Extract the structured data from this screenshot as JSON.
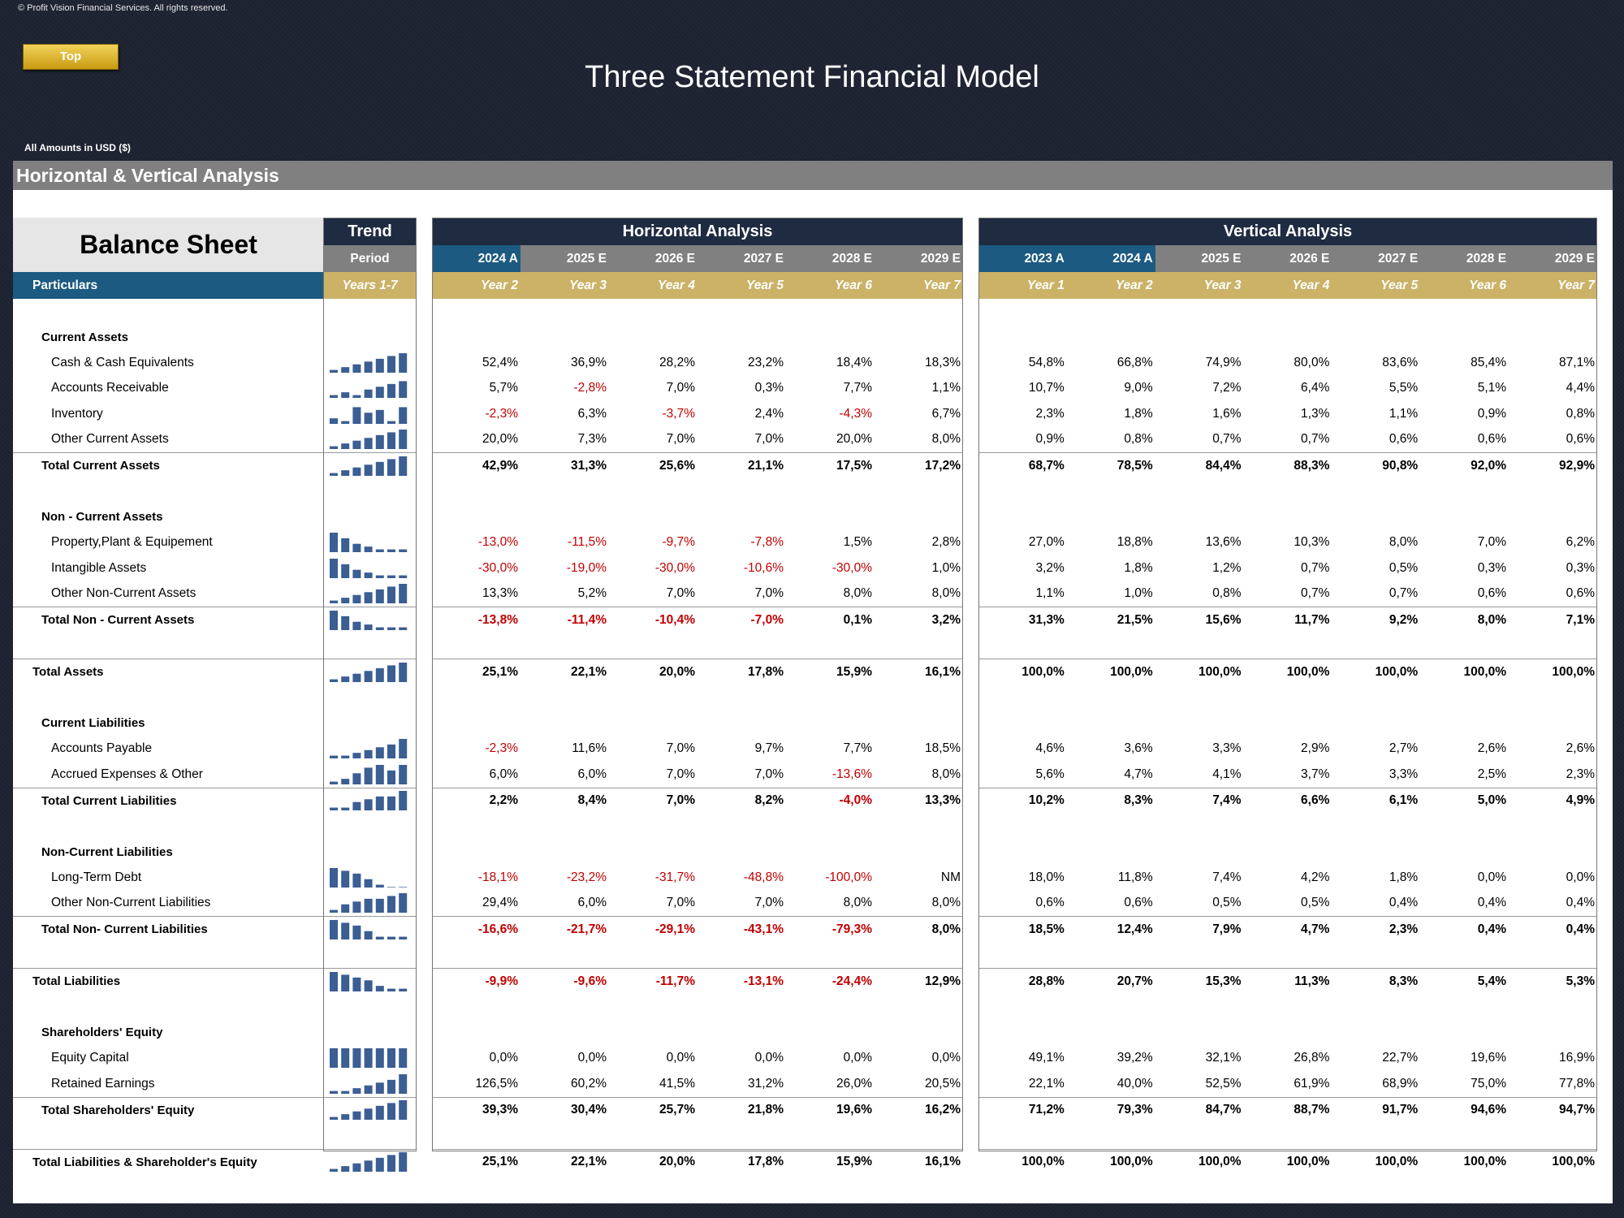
{
  "copyright": "© Profit Vision Financial Services. All rights reserved.",
  "top_button": "Top",
  "title": "Three Statement Financial Model",
  "amounts": "All Amounts in  USD ($)",
  "section": "Horizontal & Vertical Analysis",
  "left": {
    "title": "Balance Sheet",
    "trend": "Trend",
    "period": "Period",
    "particulars": "Particulars",
    "years": "Years 1-7"
  },
  "horiz": {
    "title": "Horizontal Analysis",
    "periods": [
      "2024 A",
      "2025 E",
      "2026 E",
      "2027 E",
      "2028 E",
      "2029 E"
    ],
    "years": [
      "Year 2",
      "Year 3",
      "Year 4",
      "Year 5",
      "Year 6",
      "Year 7"
    ]
  },
  "vert": {
    "title": "Vertical Analysis",
    "periods": [
      "2023 A",
      "2024 A",
      "2025 E",
      "2026 E",
      "2027 E",
      "2028 E",
      "2029 E"
    ],
    "years": [
      "Year 1",
      "Year 2",
      "Year 3",
      "Year 4",
      "Year 5",
      "Year 6",
      "Year 7"
    ]
  },
  "rows": [
    {
      "type": "blank"
    },
    {
      "type": "header",
      "label": "Current Assets"
    },
    {
      "type": "item",
      "label": "Cash & Cash Equivalents",
      "trend": [
        1,
        2,
        3,
        4,
        5,
        6,
        7
      ],
      "h": [
        "52,4%",
        "36,9%",
        "28,2%",
        "23,2%",
        "18,4%",
        "18,3%"
      ],
      "v": [
        "54,8%",
        "66,8%",
        "74,9%",
        "80,0%",
        "83,6%",
        "85,4%",
        "87,1%"
      ]
    },
    {
      "type": "item",
      "label": "Accounts Receivable",
      "trend": [
        1,
        2,
        1,
        3,
        4,
        5,
        6
      ],
      "h": [
        "5,7%",
        "-2,8%",
        "7,0%",
        "0,3%",
        "7,7%",
        "1,1%"
      ],
      "v": [
        "10,7%",
        "9,0%",
        "7,2%",
        "6,4%",
        "5,5%",
        "5,1%",
        "4,4%"
      ]
    },
    {
      "type": "item",
      "label": "Inventory",
      "trend": [
        2,
        1,
        6,
        4,
        5,
        1,
        6
      ],
      "h": [
        "-2,3%",
        "6,3%",
        "-3,7%",
        "2,4%",
        "-4,3%",
        "6,7%"
      ],
      "v": [
        "2,3%",
        "1,8%",
        "1,6%",
        "1,3%",
        "1,1%",
        "0,9%",
        "0,8%"
      ]
    },
    {
      "type": "item",
      "label": "Other Current Assets",
      "trend": [
        1,
        2,
        3,
        4,
        5,
        6,
        7
      ],
      "h": [
        "20,0%",
        "7,3%",
        "7,0%",
        "7,0%",
        "20,0%",
        "8,0%"
      ],
      "v": [
        "0,9%",
        "0,8%",
        "0,7%",
        "0,7%",
        "0,6%",
        "0,6%",
        "0,6%"
      ]
    },
    {
      "type": "total",
      "label": "Total Current Assets",
      "trend": [
        1,
        2,
        3,
        4,
        5,
        6,
        7
      ],
      "h": [
        "42,9%",
        "31,3%",
        "25,6%",
        "21,1%",
        "17,5%",
        "17,2%"
      ],
      "v": [
        "68,7%",
        "78,5%",
        "84,4%",
        "88,3%",
        "90,8%",
        "92,0%",
        "92,9%"
      ]
    },
    {
      "type": "blank"
    },
    {
      "type": "header",
      "label": "Non - Current Assets"
    },
    {
      "type": "item",
      "label": "Property,Plant & Equipement",
      "trend": [
        7,
        5,
        3,
        2,
        1,
        1,
        1
      ],
      "h": [
        "-13,0%",
        "-11,5%",
        "-9,7%",
        "-7,8%",
        "1,5%",
        "2,8%"
      ],
      "v": [
        "27,0%",
        "18,8%",
        "13,6%",
        "10,3%",
        "8,0%",
        "7,0%",
        "6,2%"
      ]
    },
    {
      "type": "item",
      "label": "Intangible Assets",
      "trend": [
        7,
        5,
        3,
        2,
        1,
        1,
        1
      ],
      "h": [
        "-30,0%",
        "-19,0%",
        "-30,0%",
        "-10,6%",
        "-30,0%",
        "1,0%"
      ],
      "v": [
        "3,2%",
        "1,8%",
        "1,2%",
        "0,7%",
        "0,5%",
        "0,3%",
        "0,3%"
      ]
    },
    {
      "type": "item",
      "label": "Other Non-Current Assets",
      "trend": [
        1,
        2,
        3,
        4,
        5,
        6,
        7
      ],
      "h": [
        "13,3%",
        "5,2%",
        "7,0%",
        "7,0%",
        "8,0%",
        "8,0%"
      ],
      "v": [
        "1,1%",
        "1,0%",
        "0,8%",
        "0,7%",
        "0,7%",
        "0,6%",
        "0,6%"
      ]
    },
    {
      "type": "total",
      "label": "Total Non - Current Assets",
      "trend": [
        7,
        5,
        3,
        2,
        1,
        1,
        1
      ],
      "h": [
        "-13,8%",
        "-11,4%",
        "-10,4%",
        "-7,0%",
        "0,1%",
        "3,2%"
      ],
      "v": [
        "31,3%",
        "21,5%",
        "15,6%",
        "11,7%",
        "9,2%",
        "8,0%",
        "7,1%"
      ]
    },
    {
      "type": "blank"
    },
    {
      "type": "grand",
      "label": "Total Assets",
      "trend": [
        1,
        2,
        3,
        4,
        5,
        6,
        7
      ],
      "h": [
        "25,1%",
        "22,1%",
        "20,0%",
        "17,8%",
        "15,9%",
        "16,1%"
      ],
      "v": [
        "100,0%",
        "100,0%",
        "100,0%",
        "100,0%",
        "100,0%",
        "100,0%",
        "100,0%"
      ]
    },
    {
      "type": "blank"
    },
    {
      "type": "header",
      "label": "Current Liabilities"
    },
    {
      "type": "item",
      "label": "Accounts Payable",
      "trend": [
        1,
        1,
        2,
        3,
        4,
        5,
        7
      ],
      "h": [
        "-2,3%",
        "11,6%",
        "7,0%",
        "9,7%",
        "7,7%",
        "18,5%"
      ],
      "v": [
        "4,6%",
        "3,6%",
        "3,3%",
        "2,9%",
        "2,7%",
        "2,6%",
        "2,6%"
      ]
    },
    {
      "type": "item",
      "label": "Accrued Expenses & Other",
      "trend": [
        1,
        2,
        4,
        6,
        7,
        5,
        7
      ],
      "h": [
        "6,0%",
        "6,0%",
        "7,0%",
        "7,0%",
        "-13,6%",
        "8,0%"
      ],
      "v": [
        "5,6%",
        "4,7%",
        "4,1%",
        "3,7%",
        "3,3%",
        "2,5%",
        "2,3%"
      ]
    },
    {
      "type": "total",
      "label": "Total Current Liabilities",
      "trend": [
        1,
        1,
        3,
        4,
        5,
        5,
        7
      ],
      "h": [
        "2,2%",
        "8,4%",
        "7,0%",
        "8,2%",
        "-4,0%",
        "13,3%"
      ],
      "v": [
        "10,2%",
        "8,3%",
        "7,4%",
        "6,6%",
        "6,1%",
        "5,0%",
        "4,9%"
      ]
    },
    {
      "type": "blank"
    },
    {
      "type": "header",
      "label": "Non-Current Liabilities"
    },
    {
      "type": "item",
      "label": "Long-Term Debt",
      "trend": [
        7,
        6,
        5,
        3,
        1,
        0,
        0
      ],
      "h": [
        "-18,1%",
        "-23,2%",
        "-31,7%",
        "-48,8%",
        "-100,0%",
        "NM"
      ],
      "v": [
        "18,0%",
        "11,8%",
        "7,4%",
        "4,2%",
        "1,8%",
        "0,0%",
        "0,0%"
      ]
    },
    {
      "type": "item",
      "label": "Other Non-Current Liabilities",
      "trend": [
        1,
        3,
        4,
        5,
        5,
        6,
        7
      ],
      "h": [
        "29,4%",
        "6,0%",
        "7,0%",
        "7,0%",
        "8,0%",
        "8,0%"
      ],
      "v": [
        "0,6%",
        "0,6%",
        "0,5%",
        "0,5%",
        "0,4%",
        "0,4%",
        "0,4%"
      ]
    },
    {
      "type": "total",
      "label": "Total Non- Current Liabilities",
      "trend": [
        7,
        6,
        5,
        3,
        1,
        1,
        1
      ],
      "h": [
        "-16,6%",
        "-21,7%",
        "-29,1%",
        "-43,1%",
        "-79,3%",
        "8,0%"
      ],
      "v": [
        "18,5%",
        "12,4%",
        "7,9%",
        "4,7%",
        "2,3%",
        "0,4%",
        "0,4%"
      ]
    },
    {
      "type": "blank"
    },
    {
      "type": "grand",
      "label": "Total Liabilities",
      "trend": [
        7,
        6,
        5,
        4,
        2,
        1,
        1
      ],
      "h": [
        "-9,9%",
        "-9,6%",
        "-11,7%",
        "-13,1%",
        "-24,4%",
        "12,9%"
      ],
      "v": [
        "28,8%",
        "20,7%",
        "15,3%",
        "11,3%",
        "8,3%",
        "5,4%",
        "5,3%"
      ]
    },
    {
      "type": "blank"
    },
    {
      "type": "header",
      "label": "Shareholders' Equity"
    },
    {
      "type": "item",
      "label": "Equity Capital",
      "trend": [
        7,
        7,
        7,
        7,
        7,
        7,
        7
      ],
      "h": [
        "0,0%",
        "0,0%",
        "0,0%",
        "0,0%",
        "0,0%",
        "0,0%"
      ],
      "v": [
        "49,1%",
        "39,2%",
        "32,1%",
        "26,8%",
        "22,7%",
        "19,6%",
        "16,9%"
      ]
    },
    {
      "type": "item",
      "label": "Retained Earnings",
      "trend": [
        1,
        1,
        2,
        3,
        4,
        5,
        7
      ],
      "h": [
        "126,5%",
        "60,2%",
        "41,5%",
        "31,2%",
        "26,0%",
        "20,5%"
      ],
      "v": [
        "22,1%",
        "40,0%",
        "52,5%",
        "61,9%",
        "68,9%",
        "75,0%",
        "77,8%"
      ]
    },
    {
      "type": "total",
      "label": "Total Shareholders' Equity",
      "trend": [
        1,
        2,
        3,
        4,
        5,
        6,
        7
      ],
      "h": [
        "39,3%",
        "30,4%",
        "25,7%",
        "21,8%",
        "19,6%",
        "16,2%"
      ],
      "v": [
        "71,2%",
        "79,3%",
        "84,7%",
        "88,7%",
        "91,7%",
        "94,6%",
        "94,7%"
      ]
    },
    {
      "type": "blank"
    },
    {
      "type": "grand",
      "label": "Total Liabilities & Shareholder's Equity",
      "trend": [
        1,
        2,
        3,
        4,
        5,
        6,
        7
      ],
      "h": [
        "25,1%",
        "22,1%",
        "20,0%",
        "17,8%",
        "15,9%",
        "16,1%"
      ],
      "v": [
        "100,0%",
        "100,0%",
        "100,0%",
        "100,0%",
        "100,0%",
        "100,0%",
        "100,0%"
      ]
    }
  ]
}
